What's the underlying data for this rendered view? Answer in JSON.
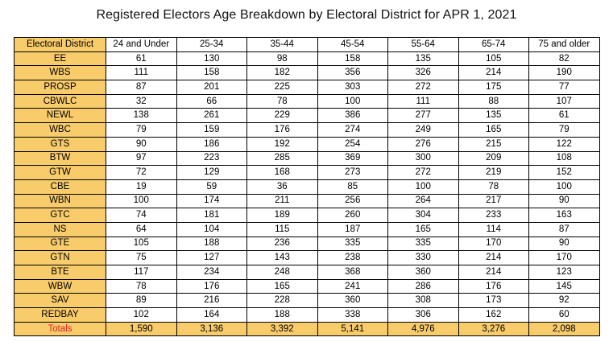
{
  "title": "Registered Electors Age Breakdown by Electoral District for APR 1, 2021",
  "columns": [
    "Electoral District",
    "24 and Under",
    "25-34",
    "35-44",
    "45-54",
    "55-64",
    "65-74",
    "75 and older"
  ],
  "rows": [
    {
      "district": "EE",
      "values": [
        "61",
        "130",
        "98",
        "158",
        "135",
        "105",
        "82"
      ]
    },
    {
      "district": "WBS",
      "values": [
        "111",
        "158",
        "182",
        "356",
        "326",
        "214",
        "190"
      ]
    },
    {
      "district": "PROSP",
      "values": [
        "87",
        "201",
        "225",
        "303",
        "272",
        "175",
        "77"
      ]
    },
    {
      "district": "CBWLC",
      "values": [
        "32",
        "66",
        "78",
        "100",
        "111",
        "88",
        "107"
      ]
    },
    {
      "district": "NEWL",
      "values": [
        "138",
        "261",
        "229",
        "386",
        "277",
        "135",
        "61"
      ]
    },
    {
      "district": "WBC",
      "values": [
        "79",
        "159",
        "176",
        "274",
        "249",
        "165",
        "79"
      ]
    },
    {
      "district": "GTS",
      "values": [
        "90",
        "186",
        "192",
        "254",
        "276",
        "215",
        "122"
      ]
    },
    {
      "district": "BTW",
      "values": [
        "97",
        "223",
        "285",
        "369",
        "300",
        "209",
        "108"
      ]
    },
    {
      "district": "GTW",
      "values": [
        "72",
        "129",
        "168",
        "273",
        "272",
        "219",
        "152"
      ]
    },
    {
      "district": "CBE",
      "values": [
        "19",
        "59",
        "36",
        "85",
        "100",
        "78",
        "100"
      ]
    },
    {
      "district": "WBN",
      "values": [
        "100",
        "174",
        "211",
        "256",
        "264",
        "217",
        "90"
      ]
    },
    {
      "district": "GTC",
      "values": [
        "74",
        "181",
        "189",
        "260",
        "304",
        "233",
        "163"
      ]
    },
    {
      "district": "NS",
      "values": [
        "64",
        "104",
        "115",
        "187",
        "165",
        "114",
        "87"
      ]
    },
    {
      "district": "GTE",
      "values": [
        "105",
        "188",
        "236",
        "335",
        "335",
        "170",
        "90"
      ]
    },
    {
      "district": "GTN",
      "values": [
        "75",
        "127",
        "143",
        "238",
        "330",
        "214",
        "170"
      ]
    },
    {
      "district": "BTE",
      "values": [
        "117",
        "234",
        "248",
        "368",
        "360",
        "214",
        "123"
      ]
    },
    {
      "district": "WBW",
      "values": [
        "78",
        "176",
        "165",
        "241",
        "286",
        "176",
        "145"
      ]
    },
    {
      "district": "SAV",
      "values": [
        "89",
        "216",
        "228",
        "360",
        "308",
        "173",
        "92"
      ]
    },
    {
      "district": "REDBAY",
      "values": [
        "102",
        "164",
        "188",
        "338",
        "306",
        "162",
        "60"
      ]
    }
  ],
  "totals": {
    "label": "Totals",
    "values": [
      "1,590",
      "3,136",
      "3,392",
      "5,141",
      "4,976",
      "3,276",
      "2,098"
    ]
  },
  "colors": {
    "district_fill": "#f8cb6b",
    "totals_label": "#e02424"
  }
}
